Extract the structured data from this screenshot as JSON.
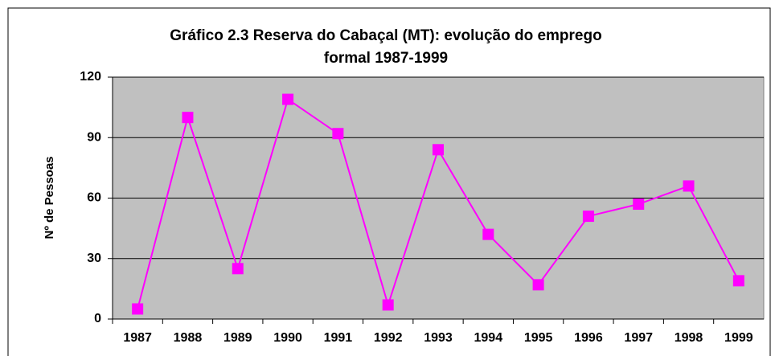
{
  "chart_data": {
    "type": "line",
    "title": [
      "Gráfico 2.3 Reserva do Cabaçal (MT):  evolução do emprego",
      "formal 1987-1999"
    ],
    "y_label": "Nº de Pessoas",
    "categories": [
      "1987",
      "1988",
      "1989",
      "1990",
      "1991",
      "1992",
      "1993",
      "1994",
      "1995",
      "1996",
      "1997",
      "1998",
      "1999"
    ],
    "series": [
      {
        "name": "Nº de Pessoas",
        "color": "#ff00ff",
        "values": [
          5,
          100,
          25,
          109,
          92,
          7,
          84,
          42,
          17,
          51,
          57,
          66,
          19
        ]
      }
    ],
    "ylim": [
      0,
      120
    ],
    "yticks": [
      0,
      30,
      60,
      90,
      120
    ],
    "grid": true,
    "plot_background": "#c0c0c0"
  }
}
